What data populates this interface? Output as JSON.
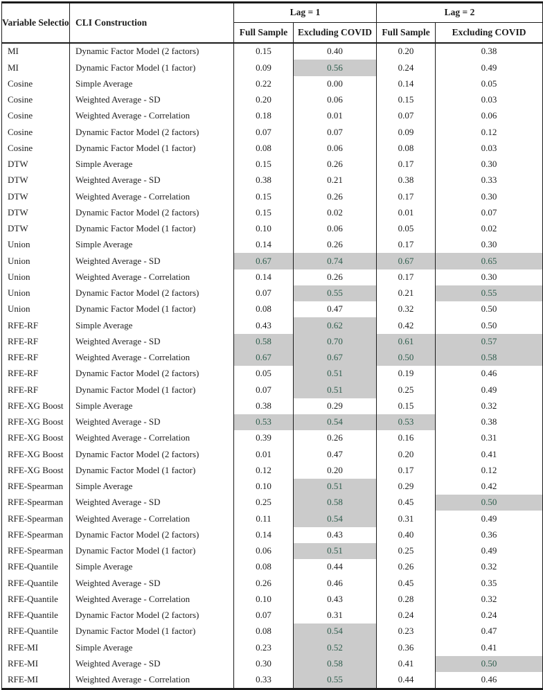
{
  "table": {
    "headers": {
      "variable_selection": "Variable Selection",
      "cli_construction": "CLI Construction",
      "lag1": "Lag = 1",
      "lag2": "Lag = 2",
      "full_sample": "Full Sample",
      "excluding_covid": "Excluding COVID"
    },
    "colors": {
      "highlight_bg": "#cbcbcb",
      "highlight_text": "#2f5d4d",
      "text": "#1c1c1c",
      "border": "#1a1a1a"
    },
    "columns": [
      "Variable Selection",
      "CLI Construction",
      "Lag = 1 Full Sample",
      "Lag = 1 Excluding COVID",
      "Lag = 2 Full Sample",
      "Lag = 2 Excluding COVID"
    ],
    "rows": [
      {
        "variable": "MI",
        "construction": "Dynamic Factor Model (2 factors)",
        "values": [
          "0.15",
          "0.40",
          "0.20",
          "0.38"
        ],
        "highlight": [
          false,
          false,
          false,
          false
        ]
      },
      {
        "variable": "MI",
        "construction": "Dynamic Factor Model (1 factor)",
        "values": [
          "0.09",
          "0.56",
          "0.24",
          "0.49"
        ],
        "highlight": [
          false,
          true,
          false,
          false
        ]
      },
      {
        "variable": "Cosine",
        "construction": "Simple Average",
        "values": [
          "0.22",
          "0.00",
          "0.14",
          "0.05"
        ],
        "highlight": [
          false,
          false,
          false,
          false
        ]
      },
      {
        "variable": "Cosine",
        "construction": "Weighted Average - SD",
        "values": [
          "0.20",
          "0.06",
          "0.15",
          "0.03"
        ],
        "highlight": [
          false,
          false,
          false,
          false
        ]
      },
      {
        "variable": "Cosine",
        "construction": "Weighted Average - Correlation",
        "values": [
          "0.18",
          "0.01",
          "0.07",
          "0.06"
        ],
        "highlight": [
          false,
          false,
          false,
          false
        ]
      },
      {
        "variable": "Cosine",
        "construction": "Dynamic Factor Model (2 factors)",
        "values": [
          "0.07",
          "0.07",
          "0.09",
          "0.12"
        ],
        "highlight": [
          false,
          false,
          false,
          false
        ]
      },
      {
        "variable": "Cosine",
        "construction": "Dynamic Factor Model (1 factor)",
        "values": [
          "0.08",
          "0.06",
          "0.08",
          "0.03"
        ],
        "highlight": [
          false,
          false,
          false,
          false
        ]
      },
      {
        "variable": "DTW",
        "construction": "Simple Average",
        "values": [
          "0.15",
          "0.26",
          "0.17",
          "0.30"
        ],
        "highlight": [
          false,
          false,
          false,
          false
        ]
      },
      {
        "variable": "DTW",
        "construction": "Weighted Average - SD",
        "values": [
          "0.38",
          "0.21",
          "0.38",
          "0.33"
        ],
        "highlight": [
          false,
          false,
          false,
          false
        ]
      },
      {
        "variable": "DTW",
        "construction": "Weighted Average - Correlation",
        "values": [
          "0.15",
          "0.26",
          "0.17",
          "0.30"
        ],
        "highlight": [
          false,
          false,
          false,
          false
        ]
      },
      {
        "variable": "DTW",
        "construction": "Dynamic Factor Model (2 factors)",
        "values": [
          "0.15",
          "0.02",
          "0.01",
          "0.07"
        ],
        "highlight": [
          false,
          false,
          false,
          false
        ]
      },
      {
        "variable": "DTW",
        "construction": "Dynamic Factor Model (1 factor)",
        "values": [
          "0.10",
          "0.06",
          "0.05",
          "0.02"
        ],
        "highlight": [
          false,
          false,
          false,
          false
        ]
      },
      {
        "variable": "Union",
        "construction": "Simple Average",
        "values": [
          "0.14",
          "0.26",
          "0.17",
          "0.30"
        ],
        "highlight": [
          false,
          false,
          false,
          false
        ]
      },
      {
        "variable": "Union",
        "construction": "Weighted Average - SD",
        "values": [
          "0.67",
          "0.74",
          "0.67",
          "0.65"
        ],
        "highlight": [
          true,
          true,
          true,
          true
        ]
      },
      {
        "variable": "Union",
        "construction": "Weighted Average - Correlation",
        "values": [
          "0.14",
          "0.26",
          "0.17",
          "0.30"
        ],
        "highlight": [
          false,
          false,
          false,
          false
        ]
      },
      {
        "variable": "Union",
        "construction": "Dynamic Factor Model (2 factors)",
        "values": [
          "0.07",
          "0.55",
          "0.21",
          "0.55"
        ],
        "highlight": [
          false,
          true,
          false,
          true
        ]
      },
      {
        "variable": "Union",
        "construction": "Dynamic Factor Model (1 factor)",
        "values": [
          "0.08",
          "0.47",
          "0.32",
          "0.50"
        ],
        "highlight": [
          false,
          false,
          false,
          false
        ]
      },
      {
        "variable": "RFE-RF",
        "construction": "Simple Average",
        "values": [
          "0.43",
          "0.62",
          "0.42",
          "0.50"
        ],
        "highlight": [
          false,
          true,
          false,
          false
        ]
      },
      {
        "variable": "RFE-RF",
        "construction": "Weighted Average - SD",
        "values": [
          "0.58",
          "0.70",
          "0.61",
          "0.57"
        ],
        "highlight": [
          true,
          true,
          true,
          true
        ]
      },
      {
        "variable": "RFE-RF",
        "construction": "Weighted Average - Correlation",
        "values": [
          "0.67",
          "0.67",
          "0.50",
          "0.58"
        ],
        "highlight": [
          true,
          true,
          true,
          true
        ]
      },
      {
        "variable": "RFE-RF",
        "construction": "Dynamic Factor Model (2 factors)",
        "values": [
          "0.05",
          "0.51",
          "0.19",
          "0.46"
        ],
        "highlight": [
          false,
          true,
          false,
          false
        ]
      },
      {
        "variable": "RFE-RF",
        "construction": "Dynamic Factor Model (1 factor)",
        "values": [
          "0.07",
          "0.51",
          "0.25",
          "0.49"
        ],
        "highlight": [
          false,
          true,
          false,
          false
        ]
      },
      {
        "variable": "RFE-XG Boost",
        "construction": "Simple Average",
        "values": [
          "0.38",
          "0.29",
          "0.15",
          "0.32"
        ],
        "highlight": [
          false,
          false,
          false,
          false
        ]
      },
      {
        "variable": "RFE-XG Boost",
        "construction": "Weighted Average - SD",
        "values": [
          "0.53",
          "0.54",
          "0.53",
          "0.38"
        ],
        "highlight": [
          true,
          true,
          true,
          false
        ]
      },
      {
        "variable": "RFE-XG Boost",
        "construction": "Weighted Average - Correlation",
        "values": [
          "0.39",
          "0.26",
          "0.16",
          "0.31"
        ],
        "highlight": [
          false,
          false,
          false,
          false
        ]
      },
      {
        "variable": "RFE-XG Boost",
        "construction": "Dynamic Factor Model (2 factors)",
        "values": [
          "0.01",
          "0.47",
          "0.20",
          "0.41"
        ],
        "highlight": [
          false,
          false,
          false,
          false
        ]
      },
      {
        "variable": "RFE-XG Boost",
        "construction": "Dynamic Factor Model (1 factor)",
        "values": [
          "0.12",
          "0.20",
          "0.17",
          "0.12"
        ],
        "highlight": [
          false,
          false,
          false,
          false
        ]
      },
      {
        "variable": "RFE-Spearman",
        "construction": "Simple Average",
        "values": [
          "0.10",
          "0.51",
          "0.29",
          "0.42"
        ],
        "highlight": [
          false,
          true,
          false,
          false
        ]
      },
      {
        "variable": "RFE-Spearman",
        "construction": "Weighted Average - SD",
        "values": [
          "0.25",
          "0.58",
          "0.45",
          "0.50"
        ],
        "highlight": [
          false,
          true,
          false,
          true
        ]
      },
      {
        "variable": "RFE-Spearman",
        "construction": "Weighted Average - Correlation",
        "values": [
          "0.11",
          "0.54",
          "0.31",
          "0.49"
        ],
        "highlight": [
          false,
          true,
          false,
          false
        ]
      },
      {
        "variable": "RFE-Spearman",
        "construction": "Dynamic Factor Model (2 factors)",
        "values": [
          "0.14",
          "0.43",
          "0.40",
          "0.36"
        ],
        "highlight": [
          false,
          false,
          false,
          false
        ]
      },
      {
        "variable": "RFE-Spearman",
        "construction": "Dynamic Factor Model (1 factor)",
        "values": [
          "0.06",
          "0.51",
          "0.25",
          "0.49"
        ],
        "highlight": [
          false,
          true,
          false,
          false
        ]
      },
      {
        "variable": "RFE-Quantile",
        "construction": "Simple Average",
        "values": [
          "0.08",
          "0.44",
          "0.26",
          "0.32"
        ],
        "highlight": [
          false,
          false,
          false,
          false
        ]
      },
      {
        "variable": "RFE-Quantile",
        "construction": "Weighted Average - SD",
        "values": [
          "0.26",
          "0.46",
          "0.45",
          "0.35"
        ],
        "highlight": [
          false,
          false,
          false,
          false
        ]
      },
      {
        "variable": "RFE-Quantile",
        "construction": "Weighted Average - Correlation",
        "values": [
          "0.10",
          "0.43",
          "0.28",
          "0.32"
        ],
        "highlight": [
          false,
          false,
          false,
          false
        ]
      },
      {
        "variable": "RFE-Quantile",
        "construction": "Dynamic Factor Model (2 factors)",
        "values": [
          "0.07",
          "0.31",
          "0.24",
          "0.24"
        ],
        "highlight": [
          false,
          false,
          false,
          false
        ]
      },
      {
        "variable": "RFE-Quantile",
        "construction": "Dynamic Factor Model (1 factor)",
        "values": [
          "0.08",
          "0.54",
          "0.23",
          "0.47"
        ],
        "highlight": [
          false,
          true,
          false,
          false
        ]
      },
      {
        "variable": "RFE-MI",
        "construction": "Simple Average",
        "values": [
          "0.23",
          "0.52",
          "0.36",
          "0.41"
        ],
        "highlight": [
          false,
          true,
          false,
          false
        ]
      },
      {
        "variable": "RFE-MI",
        "construction": "Weighted Average - SD",
        "values": [
          "0.30",
          "0.58",
          "0.41",
          "0.50"
        ],
        "highlight": [
          false,
          true,
          false,
          true
        ]
      },
      {
        "variable": "RFE-MI",
        "construction": "Weighted Average - Correlation",
        "values": [
          "0.33",
          "0.55",
          "0.44",
          "0.46"
        ],
        "highlight": [
          false,
          true,
          false,
          false
        ]
      }
    ]
  }
}
